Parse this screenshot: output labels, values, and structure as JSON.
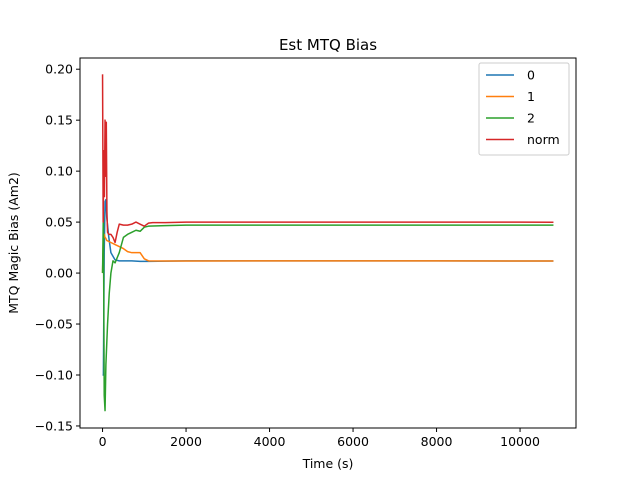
{
  "chart_data": {
    "type": "line",
    "title": "Est MTQ Bias",
    "xlabel": "Time (s)",
    "ylabel": "MTQ Magic Bias (Am2)",
    "xlim": [
      -540,
      11340
    ],
    "ylim": [
      -0.152,
      0.211
    ],
    "xticks": [
      0,
      2000,
      4000,
      6000,
      8000,
      10000
    ],
    "xtick_labels": [
      "0",
      "2000",
      "4000",
      "6000",
      "8000",
      "10000"
    ],
    "yticks": [
      -0.15,
      -0.1,
      -0.05,
      0.0,
      0.05,
      0.1,
      0.15,
      0.2
    ],
    "ytick_labels": [
      "−0.15",
      "−0.10",
      "−0.05",
      "0.00",
      "0.05",
      "0.10",
      "0.15",
      "0.20"
    ],
    "grid": false,
    "legend_position": "top-right",
    "series": [
      {
        "name": "0",
        "color": "#1f77b4",
        "points": [
          [
            0,
            -0.1
          ],
          [
            20,
            -0.1
          ],
          [
            40,
            0.02
          ],
          [
            60,
            0.07
          ],
          [
            80,
            0.072
          ],
          [
            100,
            0.055
          ],
          [
            150,
            0.035
          ],
          [
            200,
            0.02
          ],
          [
            300,
            0.013
          ],
          [
            400,
            0.012
          ],
          [
            500,
            0.012
          ],
          [
            700,
            0.012
          ],
          [
            900,
            0.0115
          ],
          [
            1100,
            0.0115
          ],
          [
            2000,
            0.012
          ],
          [
            4000,
            0.012
          ],
          [
            6000,
            0.012
          ],
          [
            8000,
            0.012
          ],
          [
            10000,
            0.0118
          ],
          [
            10800,
            0.0118
          ]
        ]
      },
      {
        "name": "1",
        "color": "#ff7f0e",
        "points": [
          [
            0,
            0.0
          ],
          [
            20,
            0.035
          ],
          [
            40,
            0.038
          ],
          [
            60,
            0.035
          ],
          [
            80,
            0.034
          ],
          [
            100,
            0.032
          ],
          [
            200,
            0.03
          ],
          [
            300,
            0.028
          ],
          [
            400,
            0.026
          ],
          [
            500,
            0.024
          ],
          [
            600,
            0.021
          ],
          [
            700,
            0.02
          ],
          [
            800,
            0.02
          ],
          [
            900,
            0.02
          ],
          [
            1000,
            0.014
          ],
          [
            1100,
            0.012
          ],
          [
            1500,
            0.0118
          ],
          [
            2000,
            0.0118
          ],
          [
            4000,
            0.012
          ],
          [
            6000,
            0.012
          ],
          [
            8000,
            0.012
          ],
          [
            10000,
            0.0118
          ],
          [
            10800,
            0.0118
          ]
        ]
      },
      {
        "name": "2",
        "color": "#2ca02c",
        "points": [
          [
            0,
            0.0
          ],
          [
            20,
            0.06
          ],
          [
            40,
            -0.12
          ],
          [
            60,
            -0.135
          ],
          [
            80,
            -0.09
          ],
          [
            120,
            -0.05
          ],
          [
            160,
            -0.02
          ],
          [
            200,
            0.0
          ],
          [
            250,
            0.012
          ],
          [
            300,
            0.01
          ],
          [
            400,
            0.02
          ],
          [
            500,
            0.035
          ],
          [
            600,
            0.038
          ],
          [
            700,
            0.04
          ],
          [
            800,
            0.042
          ],
          [
            900,
            0.041
          ],
          [
            1000,
            0.045
          ],
          [
            1100,
            0.046
          ],
          [
            1500,
            0.0465
          ],
          [
            2000,
            0.047
          ],
          [
            4000,
            0.047
          ],
          [
            6000,
            0.047
          ],
          [
            8000,
            0.047
          ],
          [
            10000,
            0.047
          ],
          [
            10800,
            0.047
          ]
        ]
      },
      {
        "name": "norm",
        "color": "#d62728",
        "points": [
          [
            0,
            0.195
          ],
          [
            15,
            0.05
          ],
          [
            30,
            0.12
          ],
          [
            45,
            0.075
          ],
          [
            60,
            0.15
          ],
          [
            75,
            0.095
          ],
          [
            90,
            0.148
          ],
          [
            105,
            0.06
          ],
          [
            120,
            0.04
          ],
          [
            150,
            0.038
          ],
          [
            200,
            0.038
          ],
          [
            250,
            0.035
          ],
          [
            300,
            0.03
          ],
          [
            350,
            0.04
          ],
          [
            400,
            0.048
          ],
          [
            500,
            0.047
          ],
          [
            600,
            0.047
          ],
          [
            700,
            0.048
          ],
          [
            800,
            0.05
          ],
          [
            900,
            0.048
          ],
          [
            1000,
            0.046
          ],
          [
            1100,
            0.049
          ],
          [
            1200,
            0.0495
          ],
          [
            1500,
            0.0495
          ],
          [
            2000,
            0.05
          ],
          [
            4000,
            0.05
          ],
          [
            6000,
            0.05
          ],
          [
            8000,
            0.05
          ],
          [
            10000,
            0.05
          ],
          [
            10800,
            0.0498
          ]
        ]
      }
    ]
  }
}
